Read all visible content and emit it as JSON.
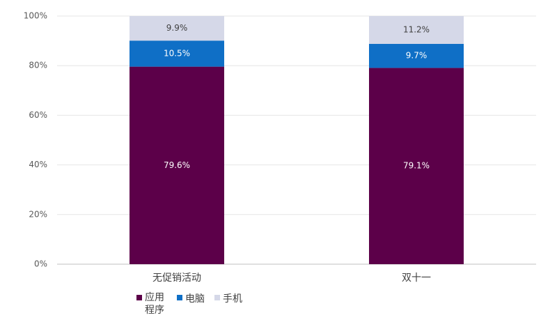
{
  "chart_data": {
    "type": "stacked_bar",
    "categories": [
      "无促销活动",
      "双十一"
    ],
    "series": [
      {
        "name": "应用程序",
        "color": "#5c0049",
        "values": [
          79.6,
          79.1
        ],
        "value_labels": [
          "79.6%",
          "79.1%"
        ]
      },
      {
        "name": "电脑",
        "color": "#0f6fc6",
        "values": [
          10.5,
          9.7
        ],
        "value_labels": [
          "10.5%",
          "9.7%"
        ]
      },
      {
        "name": "手机",
        "color": "#d5d8e8",
        "values": [
          9.9,
          11.2
        ],
        "value_labels": [
          "9.9%",
          "11.2%"
        ]
      }
    ],
    "ylim": [
      0,
      100
    ],
    "yticks": [
      {
        "value": 0,
        "label": "0%"
      },
      {
        "value": 20,
        "label": "20%"
      },
      {
        "value": 40,
        "label": "40%"
      },
      {
        "value": 60,
        "label": "60%"
      },
      {
        "value": 80,
        "label": "80%"
      },
      {
        "value": 100,
        "label": "100%"
      }
    ],
    "grid": true
  }
}
